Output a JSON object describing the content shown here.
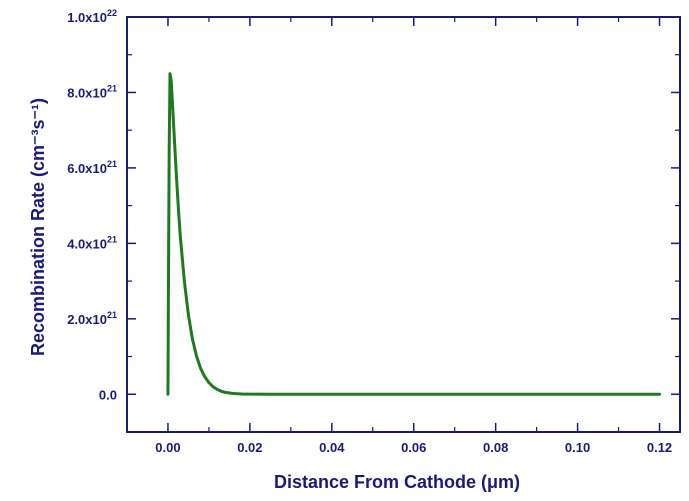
{
  "colors": {
    "axis": "#1a1a7a",
    "line": "#1f7a1f",
    "background": "#ffffff"
  },
  "chart_data": {
    "type": "line",
    "title": "",
    "xlabel_main": "Distance From Cathode (",
    "xlabel_unit": "μm",
    "xlabel_close": ")",
    "ylabel": "Recombination Rate (cm⁻³s⁻¹)",
    "xlim": [
      -0.01,
      0.125
    ],
    "ylim": [
      -1e+21,
      1e+22
    ],
    "x_ticks": [
      {
        "value": 0.0,
        "label": "0.00"
      },
      {
        "value": 0.02,
        "label": "0.02"
      },
      {
        "value": 0.04,
        "label": "0.04"
      },
      {
        "value": 0.06,
        "label": "0.06"
      },
      {
        "value": 0.08,
        "label": "0.08"
      },
      {
        "value": 0.1,
        "label": "0.10"
      },
      {
        "value": 0.12,
        "label": "0.12"
      }
    ],
    "y_ticks": [
      {
        "value": 0.0,
        "label": "0.0",
        "mantissa": "",
        "exp": ""
      },
      {
        "value": 2e+21,
        "label": "",
        "mantissa": "2.0x10",
        "exp": "21"
      },
      {
        "value": 4e+21,
        "label": "",
        "mantissa": "4.0x10",
        "exp": "21"
      },
      {
        "value": 6e+21,
        "label": "",
        "mantissa": "6.0x10",
        "exp": "21"
      },
      {
        "value": 8e+21,
        "label": "",
        "mantissa": "8.0x10",
        "exp": "21"
      },
      {
        "value": 1e+22,
        "label": "",
        "mantissa": "1.0x10",
        "exp": "22"
      }
    ],
    "grid": false,
    "legend": "none",
    "series": [
      {
        "x": [
          0.0,
          0.0001,
          0.0003,
          0.0005,
          0.0008,
          0.001,
          0.0015,
          0.002,
          0.0025,
          0.003,
          0.004,
          0.005,
          0.006,
          0.007,
          0.008,
          0.009,
          0.01,
          0.011,
          0.012,
          0.013,
          0.014,
          0.016,
          0.018,
          0.02,
          0.025,
          0.03,
          0.04,
          0.06,
          0.08,
          0.1,
          0.12
        ],
        "y": [
          0.0,
          2.5e+21,
          6.5e+21,
          8.5e+21,
          8.3e+21,
          7.9e+21,
          6.9e+21,
          5.9e+21,
          5e+21,
          4.2e+21,
          3e+21,
          2.1e+21,
          1.45e+21,
          1e+21,
          6.8e+20,
          4.6e+20,
          3.1e+20,
          2e+20,
          1.3e+20,
          8e+19,
          5e+19,
          2e+19,
          8e+18,
          3e+18,
          0.0,
          0.0,
          0.0,
          0.0,
          0.0,
          0.0,
          0.0
        ]
      }
    ]
  }
}
